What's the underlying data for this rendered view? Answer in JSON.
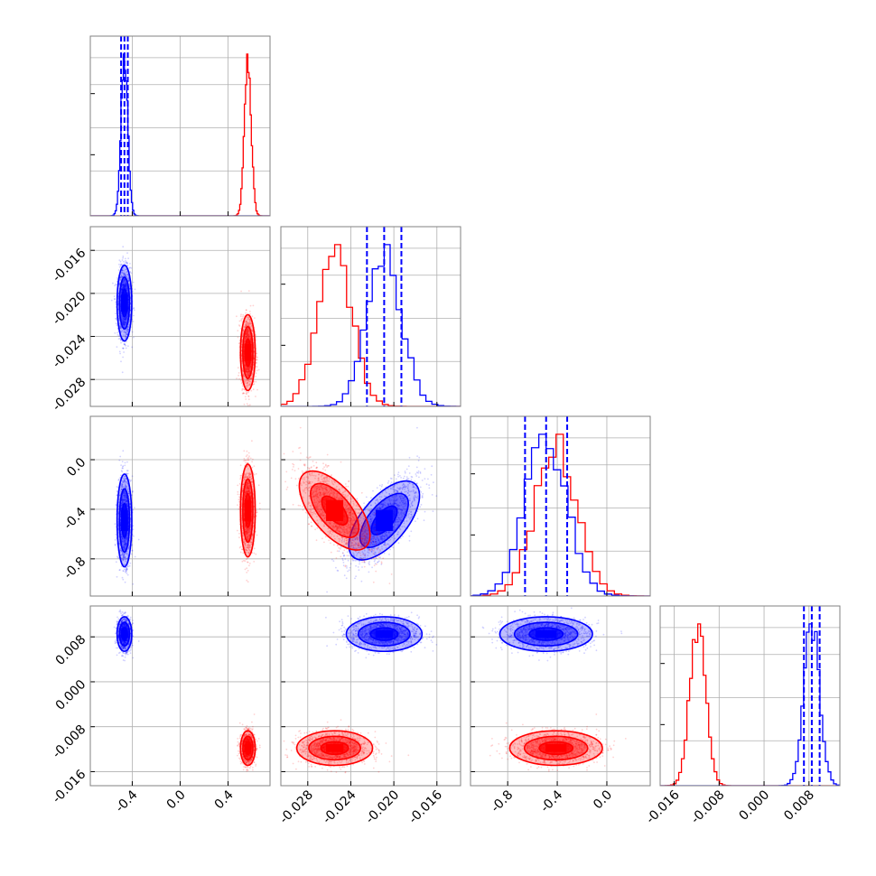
{
  "chart_data": {
    "type": "scatter",
    "subtype": "corner-plot",
    "grid": true,
    "series": [
      {
        "name": "",
        "color": "#0000ff"
      },
      {
        "name": "",
        "color": "#ff0000"
      }
    ],
    "parameters": [
      {
        "range": [
          -0.75,
          0.75
        ],
        "ticks": [
          "-0.4",
          "0.0",
          "0.4"
        ],
        "tick_values": [
          -0.4,
          0.0,
          0.4
        ]
      },
      {
        "range": [
          -0.0305,
          -0.0138
        ],
        "ticks": [
          "-0.028",
          "-0.024",
          "-0.020",
          "-0.016"
        ],
        "tick_values": [
          -0.028,
          -0.024,
          -0.02,
          -0.016
        ]
      },
      {
        "range": [
          -1.1,
          0.35
        ],
        "ticks": [
          "-0.8",
          "-0.4",
          "0.0"
        ],
        "tick_values": [
          -0.8,
          -0.4,
          0.0
        ]
      },
      {
        "range": [
          -0.0185,
          0.0135
        ],
        "ticks": [
          "-0.016",
          "-0.008",
          "0.000",
          "0.008"
        ],
        "tick_values": [
          -0.016,
          -0.008,
          0.0,
          0.008
        ]
      }
    ],
    "distributions": {
      "blue": {
        "mean": [
          -0.465,
          -0.0209,
          -0.49,
          0.0085
        ],
        "sd": [
          0.028,
          0.0016,
          0.17,
          0.0014
        ]
      },
      "red": {
        "mean": [
          0.565,
          -0.0255,
          -0.41,
          -0.0118
        ],
        "sd": [
          0.028,
          0.0016,
          0.17,
          0.0014
        ]
      }
    },
    "correlations": {
      "blue_param2_vs_param3": 0.7,
      "red_param2_vs_param3": -0.7
    },
    "quantile_lines_blue": [
      [
        -0.493,
        -0.465,
        -0.437
      ],
      [
        -0.0225,
        -0.0209,
        -0.0193
      ],
      [
        -0.66,
        -0.49,
        -0.32
      ],
      [
        0.0071,
        0.0085,
        0.0099
      ]
    ],
    "histograms": {
      "param1": {
        "edges": [
          -0.75,
          -0.55,
          -0.5,
          -0.45,
          -0.4,
          0.4,
          0.5,
          0.55,
          0.6,
          0.65,
          0.75
        ],
        "blue_bins": [
          [
            -0.55,
            -0.525,
            0.45
          ],
          [
            -0.525,
            -0.5,
            0.62
          ],
          [
            -0.5,
            -0.475,
            1.0
          ],
          [
            -0.475,
            -0.45,
            0.95
          ],
          [
            -0.45,
            -0.425,
            0.62
          ],
          [
            -0.425,
            -0.4,
            0.14
          ]
        ],
        "red_bins": [
          [
            0.45,
            0.5,
            0.22
          ],
          [
            0.5,
            0.525,
            0.45
          ],
          [
            0.525,
            0.55,
            0.62
          ],
          [
            0.55,
            0.575,
            0.92
          ],
          [
            0.575,
            0.6,
            0.6
          ],
          [
            0.6,
            0.625,
            0.5
          ],
          [
            0.625,
            0.65,
            0.1
          ]
        ]
      }
    }
  }
}
